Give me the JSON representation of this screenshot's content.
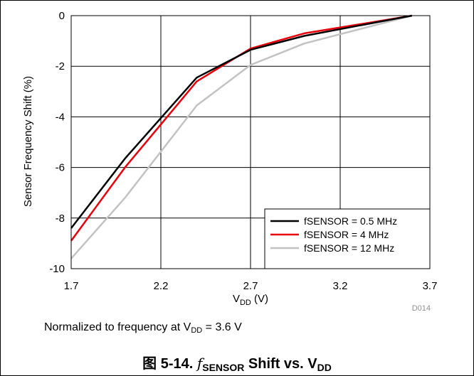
{
  "chart_data": {
    "type": "line",
    "xlabel": {
      "main": "V",
      "sub": "DD",
      "suffix": " (V)"
    },
    "ylabel": "Sensor Frequency Shift (%)",
    "xlim": [
      1.7,
      3.7
    ],
    "ylim": [
      -10,
      0
    ],
    "x_ticks": [
      "1.7",
      "2.2",
      "2.7",
      "3.2",
      "3.7"
    ],
    "y_ticks": [
      "0",
      "-2",
      "-4",
      "-6",
      "-8",
      "-10"
    ],
    "grid": true,
    "legend_position": "bottom-right",
    "figure_code": "D014",
    "series": [
      {
        "name": "fSENSOR = 0.5 MHz",
        "color": "#000000",
        "x": [
          1.7,
          2.0,
          2.4,
          2.7,
          3.0,
          3.3,
          3.6
        ],
        "y": [
          -8.4,
          -5.65,
          -2.45,
          -1.35,
          -0.8,
          -0.4,
          0.0
        ]
      },
      {
        "name": "fSENSOR = 4 MHz",
        "color": "#e8000b",
        "x": [
          1.7,
          2.0,
          2.4,
          2.7,
          3.0,
          3.3,
          3.6
        ],
        "y": [
          -8.9,
          -6.0,
          -2.6,
          -1.3,
          -0.7,
          -0.35,
          0.0
        ]
      },
      {
        "name": "fSENSOR = 12 MHz",
        "color": "#c2c2c2",
        "x": [
          1.7,
          2.0,
          2.4,
          2.7,
          3.0,
          3.3,
          3.6
        ],
        "y": [
          -9.6,
          -7.2,
          -3.55,
          -1.95,
          -1.1,
          -0.55,
          0.0
        ]
      }
    ]
  },
  "note": {
    "prefix": "Normalized to frequency at V",
    "sub": "DD",
    "suffix": " = 3.6 V"
  },
  "caption": {
    "prefix": "图 5-14. ",
    "symbol": "f",
    "symbol_sub": "SENSOR",
    "middle": " Shift vs. V",
    "end_sub": "DD"
  }
}
